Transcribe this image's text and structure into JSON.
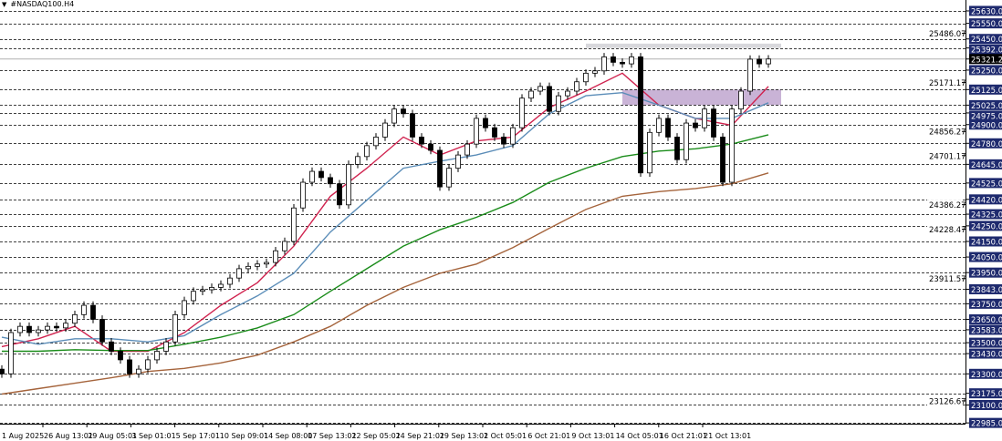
{
  "window": {
    "title": "#NASDAQ100.H4"
  },
  "colors": {
    "bull_body": "#ffffff",
    "bear_body": "#000000",
    "candle_outline": "#000000",
    "grid": "#000000",
    "label_bg": "#1e2a6e",
    "label_text": "#ffffff",
    "current_bg": "#000000",
    "current_line": "#b0b0b0",
    "zone_gray": "#d8d8dc",
    "zone_purple": "#c9b3d6"
  },
  "chart_data": {
    "type": "candlestick",
    "title": "#NASDAQ100.H4",
    "ylim": [
      22980,
      25700
    ],
    "grid": true,
    "closes": [
      23300,
      23565,
      23605,
      23565,
      23582,
      23605,
      23595,
      23625,
      23680,
      23740,
      23650,
      23505,
      23445,
      23390,
      23300,
      23330,
      23390,
      23445,
      23505,
      23680,
      23770,
      23830,
      23840,
      23855,
      23875,
      23915,
      23975,
      23990,
      24005,
      24015,
      24090,
      24150,
      24365,
      24530,
      24600,
      24560,
      24520,
      24385,
      24645,
      24695,
      24765,
      24820,
      24910,
      25000,
      24970,
      24820,
      24775,
      24735,
      24500,
      24620,
      24705,
      24775,
      24940,
      24880,
      24820,
      24775,
      24880,
      25070,
      25115,
      25145,
      24985,
      25085,
      25115,
      25175,
      25230,
      25245,
      25335,
      25300,
      25290,
      25335,
      24590,
      24850,
      24940,
      24820,
      24675,
      24910,
      24880,
      25000,
      24820,
      24530,
      25000,
      25115,
      25320,
      25290,
      25321.24
    ],
    "moving_averages": [
      {
        "color": "#d0234f",
        "values": [
          23475,
          23525,
          23605,
          23445,
          23445,
          23565,
          23740,
          23885,
          24120,
          24440,
          24620,
          24820,
          24705,
          24795,
          24820,
          25010,
          25115,
          25230,
          25025,
          24940,
          24895,
          25145
        ]
      },
      {
        "color": "#5b8db8",
        "values": [
          23535,
          23490,
          23525,
          23525,
          23505,
          23545,
          23680,
          23800,
          23945,
          24210,
          24415,
          24620,
          24665,
          24705,
          24765,
          24970,
          25085,
          25105,
          25025,
          24940,
          24940,
          25040
        ]
      },
      {
        "color": "#1a8c1a",
        "values": [
          23445,
          23445,
          23455,
          23450,
          23450,
          23490,
          23535,
          23595,
          23680,
          23830,
          23975,
          24120,
          24225,
          24305,
          24400,
          24530,
          24620,
          24695,
          24730,
          24745,
          24775,
          24835
        ]
      },
      {
        "color": "#a5643c",
        "values": [
          23170,
          23205,
          23240,
          23275,
          23315,
          23335,
          23370,
          23420,
          23505,
          23605,
          23740,
          23855,
          23945,
          24005,
          24110,
          24235,
          24355,
          24440,
          24470,
          24490,
          24520,
          24590
        ]
      }
    ],
    "zones": [
      {
        "name": "resistance",
        "from_price": 25392,
        "to_price": 25420,
        "start_candle": 64,
        "end_candle": 85,
        "color": "#d8d8dc"
      },
      {
        "name": "supply",
        "from_price": 25025,
        "to_price": 25125,
        "start_candle": 68,
        "end_candle": 85,
        "color": "#c9b3d6"
      }
    ],
    "current_price": "25321.24",
    "grid_levels": [
      "25630.00",
      "25550.00",
      "25450.00",
      "25392.00",
      "25250.00",
      "25125.00",
      "25025.00",
      "24975.00",
      "24900.00",
      "24780.00",
      "24645.00",
      "24525.00",
      "24420.00",
      "24325.00",
      "24250.00",
      "24150.00",
      "24050.00",
      "23950.00",
      "23843.00",
      "23750.00",
      "23650.00",
      "23583.00",
      "23500.00",
      "23430.00",
      "23300.00",
      "23175.00",
      "23100.00",
      "22985.00"
    ],
    "price_marks": [
      "25486.07",
      "25171.17",
      "24856.27",
      "24701.17",
      "24386.27",
      "24228.47",
      "23911.57",
      "23126.67"
    ],
    "x_labels": [
      "1 Aug 2025",
      "26 Aug 13:01",
      "29 Aug 05:01",
      "3 Sep 01:01",
      "5 Sep 17:01",
      "10 Sep 09:01",
      "14 Sep 08:00",
      "17 Sep 13:01",
      "22 Sep 05:01",
      "24 Sep 21:01",
      "29 Sep 13:01",
      "2 Oct 05:01",
      "6 Oct 21:01",
      "9 Oct 13:01",
      "14 Oct 05:01",
      "16 Oct 21:01",
      "21 Oct 13:01"
    ]
  }
}
